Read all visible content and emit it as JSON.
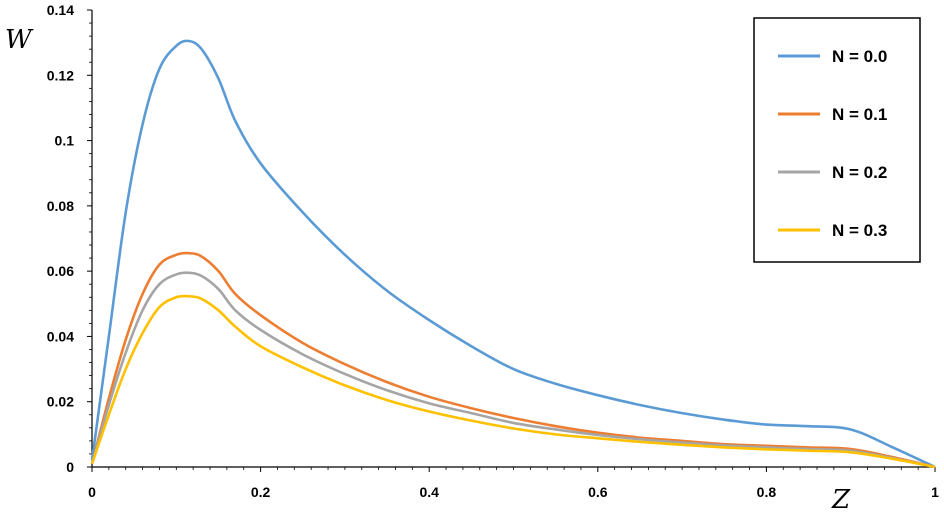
{
  "chart_data": {
    "type": "line",
    "title": "",
    "xlabel": "Z",
    "ylabel": "W",
    "xlim": [
      0,
      1
    ],
    "ylim": [
      0,
      0.14
    ],
    "x_ticks": [
      0,
      0.2,
      0.4,
      0.6,
      0.8,
      1
    ],
    "x_tick_labels": [
      "0",
      "0.2",
      "0.4",
      "0.6",
      "0.8",
      "1"
    ],
    "y_ticks": [
      0,
      0.02,
      0.04,
      0.06,
      0.08,
      0.1,
      0.12,
      0.14
    ],
    "y_tick_labels": [
      "0",
      "0.02",
      "0.04",
      "0.06",
      "0.08",
      "0.1",
      "0.12",
      "0.14"
    ],
    "grid": false,
    "legend_position": "top-right",
    "x": [
      0,
      0.02,
      0.04,
      0.06,
      0.08,
      0.1,
      0.115,
      0.13,
      0.15,
      0.17,
      0.2,
      0.25,
      0.3,
      0.35,
      0.4,
      0.45,
      0.5,
      0.55,
      0.6,
      0.65,
      0.7,
      0.75,
      0.8,
      0.85,
      0.9,
      0.95,
      1.0
    ],
    "series": [
      {
        "name": "N = 0.0",
        "color": "#5B9BD5",
        "values": [
          0.002,
          0.04,
          0.078,
          0.105,
          0.122,
          0.129,
          0.1305,
          0.128,
          0.119,
          0.106,
          0.093,
          0.078,
          0.065,
          0.054,
          0.045,
          0.037,
          0.03,
          0.0255,
          0.022,
          0.019,
          0.0165,
          0.0145,
          0.013,
          0.0125,
          0.0115,
          0.006,
          0.0
        ]
      },
      {
        "name": "N = 0.1",
        "color": "#ED7D31",
        "values": [
          0.001,
          0.021,
          0.039,
          0.053,
          0.062,
          0.065,
          0.0655,
          0.0645,
          0.06,
          0.053,
          0.0465,
          0.038,
          0.0315,
          0.026,
          0.0215,
          0.018,
          0.015,
          0.0125,
          0.0105,
          0.009,
          0.008,
          0.007,
          0.0065,
          0.006,
          0.0055,
          0.003,
          0.0
        ]
      },
      {
        "name": "N = 0.2",
        "color": "#A5A5A5",
        "values": [
          0.001,
          0.019,
          0.035,
          0.048,
          0.056,
          0.059,
          0.0595,
          0.0585,
          0.0545,
          0.048,
          0.042,
          0.0345,
          0.0285,
          0.0235,
          0.0195,
          0.0165,
          0.0135,
          0.0115,
          0.0098,
          0.0085,
          0.0075,
          0.0066,
          0.006,
          0.0055,
          0.005,
          0.0027,
          0.0
        ]
      },
      {
        "name": "N = 0.3",
        "color": "#FFC000",
        "values": [
          0.001,
          0.016,
          0.03,
          0.041,
          0.049,
          0.052,
          0.0523,
          0.0515,
          0.048,
          0.043,
          0.037,
          0.0305,
          0.025,
          0.0205,
          0.017,
          0.0142,
          0.0118,
          0.01,
          0.0088,
          0.0077,
          0.0068,
          0.006,
          0.0054,
          0.005,
          0.0045,
          0.0025,
          0.0
        ]
      }
    ]
  }
}
